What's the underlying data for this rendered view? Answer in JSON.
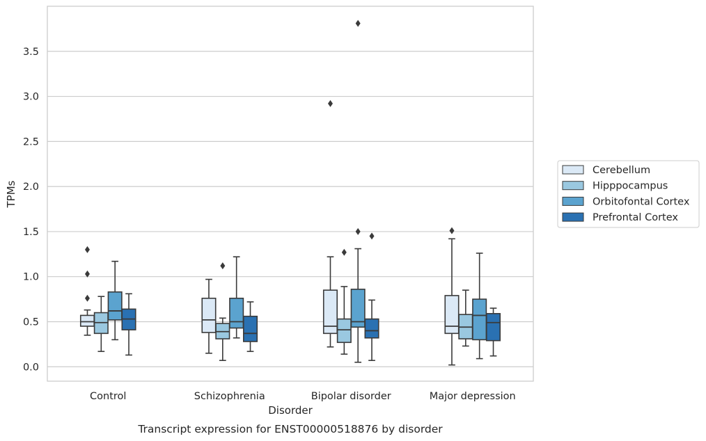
{
  "chart_data": {
    "type": "box",
    "title": "",
    "xlabel": "Disorder",
    "ylabel": "TPMs",
    "caption": "Transcript expression for ENST00000518876 by disorder",
    "ylim": [
      -0.16,
      4.0
    ],
    "yticks": [
      "0.0",
      "0.5",
      "1.0",
      "1.5",
      "2.0",
      "2.5",
      "3.0",
      "3.5"
    ],
    "ytick_values": [
      0.0,
      0.5,
      1.0,
      1.5,
      2.0,
      2.5,
      3.0,
      3.5
    ],
    "grid": "horizontal",
    "legend_position": "right",
    "categories": [
      "Control",
      "Schizophrenia",
      "Bipolar disorder",
      "Major depression"
    ],
    "series": [
      {
        "name": "Cerebellum",
        "color": "#dbe9f6",
        "boxes": [
          {
            "whisker_low": 0.35,
            "q1": 0.45,
            "median": 0.5,
            "q3": 0.57,
            "whisker_high": 0.63,
            "outliers": [
              0.76,
              1.03,
              1.3
            ]
          },
          {
            "whisker_low": 0.15,
            "q1": 0.38,
            "median": 0.52,
            "q3": 0.76,
            "whisker_high": 0.97,
            "outliers": []
          },
          {
            "whisker_low": 0.22,
            "q1": 0.37,
            "median": 0.45,
            "q3": 0.85,
            "whisker_high": 1.22,
            "outliers": [
              2.92
            ]
          },
          {
            "whisker_low": 0.02,
            "q1": 0.37,
            "median": 0.45,
            "q3": 0.79,
            "whisker_high": 1.42,
            "outliers": [
              1.51
            ]
          }
        ]
      },
      {
        "name": "Hipppocampus",
        "color": "#9ac8e0",
        "boxes": [
          {
            "whisker_low": 0.17,
            "q1": 0.37,
            "median": 0.49,
            "q3": 0.6,
            "whisker_high": 0.78,
            "outliers": []
          },
          {
            "whisker_low": 0.07,
            "q1": 0.31,
            "median": 0.39,
            "q3": 0.48,
            "whisker_high": 0.54,
            "outliers": [
              1.12
            ]
          },
          {
            "whisker_low": 0.14,
            "q1": 0.27,
            "median": 0.41,
            "q3": 0.53,
            "whisker_high": 0.89,
            "outliers": [
              1.27
            ]
          },
          {
            "whisker_low": 0.23,
            "q1": 0.31,
            "median": 0.44,
            "q3": 0.58,
            "whisker_high": 0.85,
            "outliers": []
          }
        ]
      },
      {
        "name": "Orbitofontal Cortex",
        "color": "#5ba3cf",
        "boxes": [
          {
            "whisker_low": 0.3,
            "q1": 0.52,
            "median": 0.62,
            "q3": 0.83,
            "whisker_high": 1.17,
            "outliers": []
          },
          {
            "whisker_low": 0.32,
            "q1": 0.43,
            "median": 0.5,
            "q3": 0.76,
            "whisker_high": 1.22,
            "outliers": []
          },
          {
            "whisker_low": 0.05,
            "q1": 0.44,
            "median": 0.5,
            "q3": 0.86,
            "whisker_high": 1.31,
            "outliers": [
              1.5,
              3.81
            ]
          },
          {
            "whisker_low": 0.09,
            "q1": 0.3,
            "median": 0.57,
            "q3": 0.75,
            "whisker_high": 1.26,
            "outliers": []
          }
        ]
      },
      {
        "name": "Prefrontal Cortex",
        "color": "#2a71b2",
        "boxes": [
          {
            "whisker_low": 0.13,
            "q1": 0.41,
            "median": 0.53,
            "q3": 0.64,
            "whisker_high": 0.81,
            "outliers": []
          },
          {
            "whisker_low": 0.17,
            "q1": 0.28,
            "median": 0.37,
            "q3": 0.56,
            "whisker_high": 0.72,
            "outliers": []
          },
          {
            "whisker_low": 0.07,
            "q1": 0.32,
            "median": 0.4,
            "q3": 0.53,
            "whisker_high": 0.74,
            "outliers": [
              1.45
            ]
          },
          {
            "whisker_low": 0.12,
            "q1": 0.29,
            "median": 0.49,
            "q3": 0.59,
            "whisker_high": 0.65,
            "outliers": []
          }
        ]
      }
    ]
  }
}
